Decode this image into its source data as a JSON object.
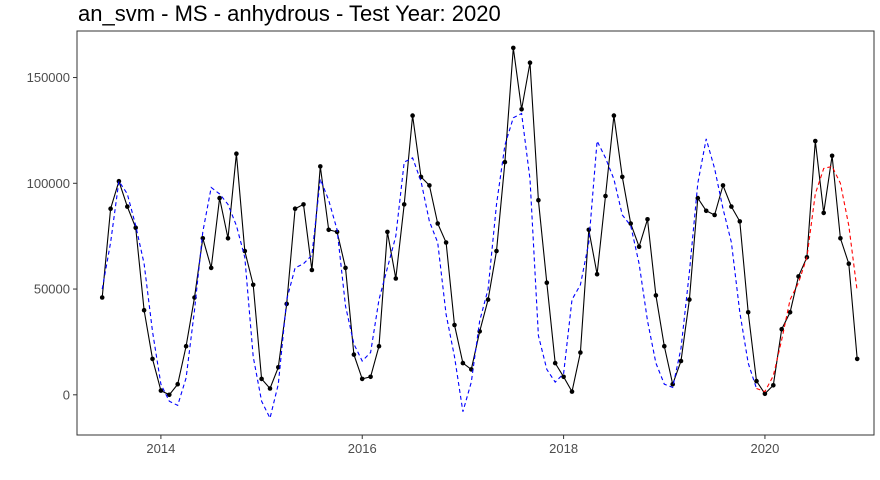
{
  "chart_data": {
    "type": "line",
    "title": "an_svm - MS - anhydrous - Test Year: 2020",
    "xlabel": "",
    "ylabel": "",
    "x_ticks": [
      "2014",
      "2016",
      "2018",
      "2020"
    ],
    "y_ticks": [
      "0",
      "50000",
      "100000",
      "150000"
    ],
    "xlim": [
      "2013-03",
      "2021-02"
    ],
    "ylim": [
      -19000,
      172000
    ],
    "grid": false,
    "legend": "none",
    "colors": {
      "actual": "#000000",
      "fitted": "#0000ff",
      "forecast": "#ff0000"
    },
    "series": [
      {
        "role": "actual",
        "style": "solid-with-points",
        "x": [
          "2013-06",
          "2013-07",
          "2013-08",
          "2013-09",
          "2013-10",
          "2013-11",
          "2013-12",
          "2014-01",
          "2014-02",
          "2014-03",
          "2014-04",
          "2014-05",
          "2014-06",
          "2014-07",
          "2014-08",
          "2014-09",
          "2014-10",
          "2014-11",
          "2014-12",
          "2015-01",
          "2015-02",
          "2015-03",
          "2015-04",
          "2015-05",
          "2015-06",
          "2015-07",
          "2015-08",
          "2015-09",
          "2015-10",
          "2015-11",
          "2015-12",
          "2016-01",
          "2016-02",
          "2016-03",
          "2016-04",
          "2016-05",
          "2016-06",
          "2016-07",
          "2016-08",
          "2016-09",
          "2016-10",
          "2016-11",
          "2016-12",
          "2017-01",
          "2017-02",
          "2017-03",
          "2017-04",
          "2017-05",
          "2017-06",
          "2017-07",
          "2017-08",
          "2017-09",
          "2017-10",
          "2017-11",
          "2017-12",
          "2018-01",
          "2018-02",
          "2018-03",
          "2018-04",
          "2018-05",
          "2018-06",
          "2018-07",
          "2018-08",
          "2018-09",
          "2018-10",
          "2018-11",
          "2018-12",
          "2019-01",
          "2019-02",
          "2019-03",
          "2019-04",
          "2019-05",
          "2019-06",
          "2019-07",
          "2019-08",
          "2019-09",
          "2019-10",
          "2019-11",
          "2019-12",
          "2020-01",
          "2020-02",
          "2020-03",
          "2020-04",
          "2020-05",
          "2020-06",
          "2020-07",
          "2020-08",
          "2020-09",
          "2020-10",
          "2020-11",
          "2020-12"
        ],
        "values": [
          46000,
          88000,
          101000,
          89000,
          79000,
          40000,
          17000,
          2000,
          0,
          5000,
          23000,
          46000,
          74000,
          60000,
          93000,
          74000,
          114000,
          68000,
          52000,
          7500,
          3000,
          13000,
          43000,
          88000,
          90000,
          59000,
          108000,
          78000,
          77000,
          60000,
          19000,
          7500,
          8500,
          23000,
          77000,
          55000,
          90000,
          132000,
          103000,
          99000,
          81000,
          72000,
          33000,
          15000,
          12000,
          30000,
          45000,
          68000,
          110000,
          164000,
          135000,
          157000,
          92000,
          53000,
          15000,
          8500,
          1500,
          20000,
          78000,
          57000,
          94000,
          132000,
          103000,
          81000,
          70000,
          83000,
          47000,
          23000,
          5000,
          16000,
          45000,
          93000,
          87000,
          85000,
          99000,
          89000,
          82000,
          39000,
          6500,
          500,
          4500,
          31000,
          39000,
          56000,
          65000,
          120000,
          86000,
          113000,
          74000,
          62000,
          17000
        ]
      },
      {
        "role": "fitted",
        "style": "dashed",
        "x": [
          "2013-06",
          "2013-07",
          "2013-08",
          "2013-09",
          "2013-10",
          "2013-11",
          "2013-12",
          "2014-01",
          "2014-02",
          "2014-03",
          "2014-04",
          "2014-05",
          "2014-06",
          "2014-07",
          "2014-08",
          "2014-09",
          "2014-10",
          "2014-11",
          "2014-12",
          "2015-01",
          "2015-02",
          "2015-03",
          "2015-04",
          "2015-05",
          "2015-06",
          "2015-07",
          "2015-08",
          "2015-09",
          "2015-10",
          "2015-11",
          "2015-12",
          "2016-01",
          "2016-02",
          "2016-03",
          "2016-04",
          "2016-05",
          "2016-06",
          "2016-07",
          "2016-08",
          "2016-09",
          "2016-10",
          "2016-11",
          "2016-12",
          "2017-01",
          "2017-02",
          "2017-03",
          "2017-04",
          "2017-05",
          "2017-06",
          "2017-07",
          "2017-08",
          "2017-09",
          "2017-10",
          "2017-11",
          "2017-12",
          "2018-01",
          "2018-02",
          "2018-03",
          "2018-04",
          "2018-05",
          "2018-06",
          "2018-07",
          "2018-08",
          "2018-09",
          "2018-10",
          "2018-11",
          "2018-12",
          "2019-01",
          "2019-02",
          "2019-03",
          "2019-04",
          "2019-05",
          "2019-06",
          "2019-07",
          "2019-08",
          "2019-09",
          "2019-10",
          "2019-11",
          "2019-12"
        ],
        "values": [
          50000,
          72000,
          101000,
          95000,
          80000,
          62000,
          30000,
          5000,
          -3000,
          -5000,
          8000,
          40000,
          77000,
          98000,
          95000,
          90000,
          80000,
          65000,
          18000,
          -3000,
          -11000,
          5000,
          45000,
          60000,
          62000,
          66000,
          102000,
          92000,
          78000,
          42000,
          24000,
          16000,
          20000,
          45000,
          60000,
          75000,
          110000,
          112000,
          101000,
          82000,
          72000,
          38000,
          18000,
          -8000,
          6000,
          35000,
          50000,
          90000,
          118000,
          131000,
          133000,
          102000,
          28000,
          12000,
          6000,
          10000,
          45000,
          52000,
          72000,
          120000,
          112000,
          102000,
          85000,
          80000,
          62000,
          35000,
          15000,
          5000,
          3500,
          22000,
          58000,
          100000,
          121000,
          107000,
          88000,
          72000,
          39000,
          15000,
          3000
        ]
      },
      {
        "role": "forecast",
        "style": "dashed",
        "x": [
          "2019-12",
          "2020-01",
          "2020-02",
          "2020-03",
          "2020-04",
          "2020-05",
          "2020-06",
          "2020-07",
          "2020-08",
          "2020-09",
          "2020-10",
          "2020-11",
          "2020-12"
        ],
        "values": [
          3000,
          1500,
          9000,
          26000,
          45000,
          53000,
          65000,
          95000,
          107000,
          108000,
          100000,
          80000,
          49000
        ]
      }
    ]
  }
}
